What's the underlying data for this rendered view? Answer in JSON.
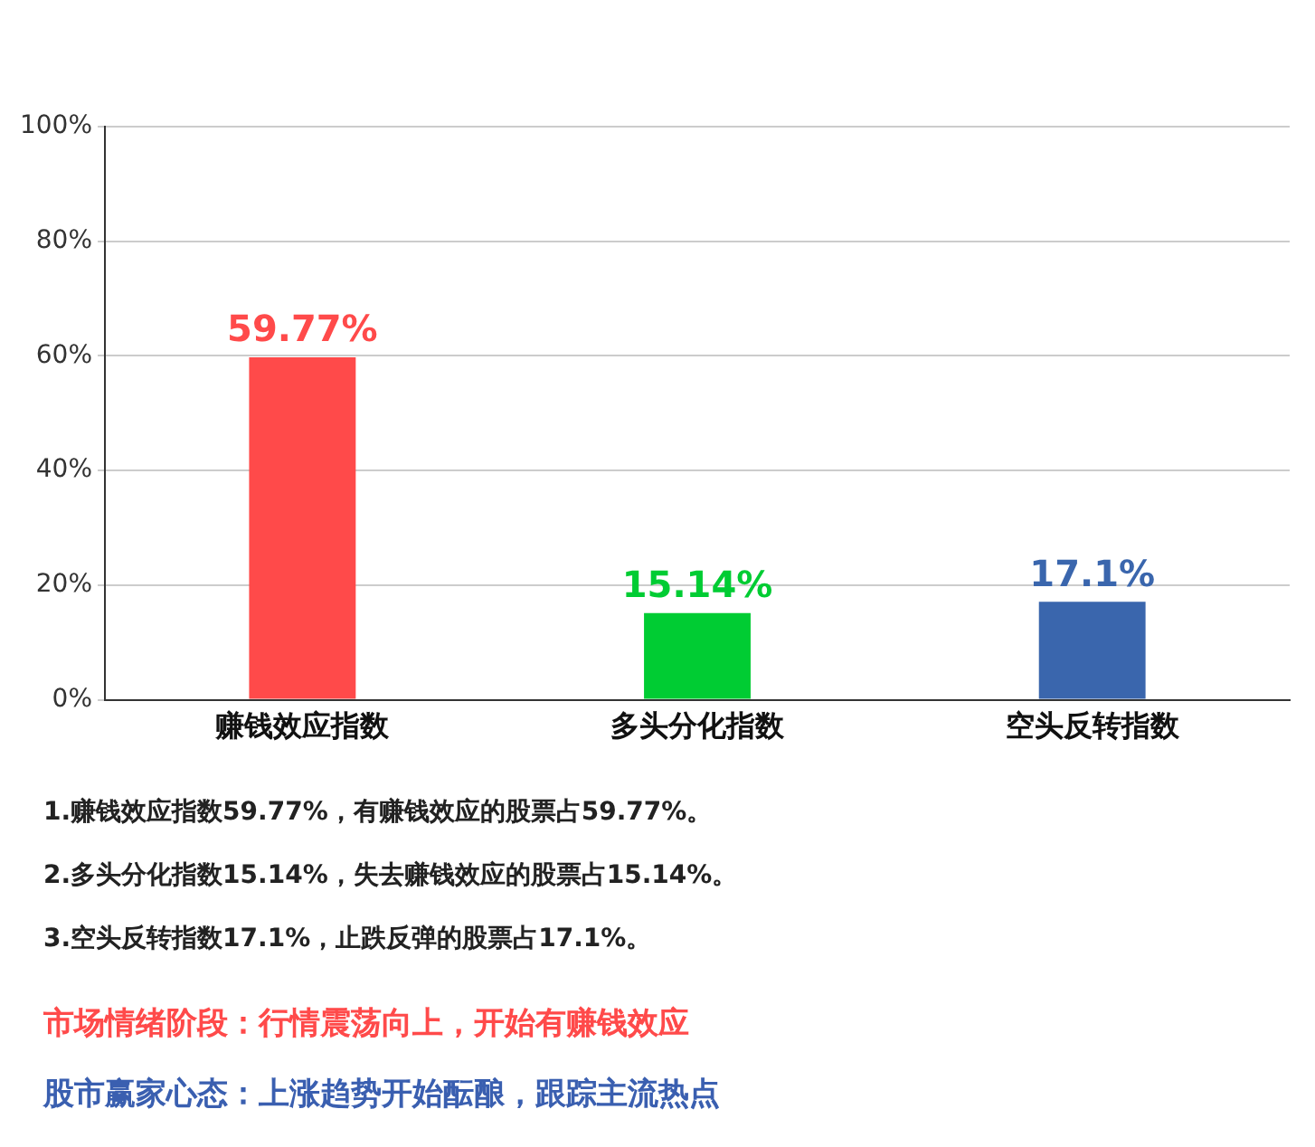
{
  "chart_data": {
    "type": "bar",
    "categories": [
      "赚钱效应指数",
      "多头分化指数",
      "空头反转指数"
    ],
    "values": [
      59.77,
      15.14,
      17.1
    ],
    "colors": [
      "#ff4a4a",
      "#00cc33",
      "#3a66ad"
    ],
    "value_labels": [
      "59.77%",
      "15.14%",
      "17.1%"
    ],
    "ylim": [
      0,
      100
    ],
    "yticks": [
      {
        "value": 0,
        "label": "0%"
      },
      {
        "value": 20,
        "label": "20%"
      },
      {
        "value": 40,
        "label": "40%"
      },
      {
        "value": 60,
        "label": "60%"
      },
      {
        "value": 80,
        "label": "80%"
      },
      {
        "value": 100,
        "label": "100%"
      }
    ],
    "grid": "y",
    "legend": false,
    "annotations": [
      "1.赚钱效应指数59.77%，有赚钱效应的股票占59.77%。",
      "2.多头分化指数15.14%，失去赚钱效应的股票占15.14%。",
      "3.空头反转指数17.1%，止跌反弹的股票占17.1%。",
      "市场情绪阶段：行情震荡向上，开始有赚钱效应",
      "股市赢家心态：上涨趋势开始酝酿，跟踪主流热点"
    ]
  }
}
